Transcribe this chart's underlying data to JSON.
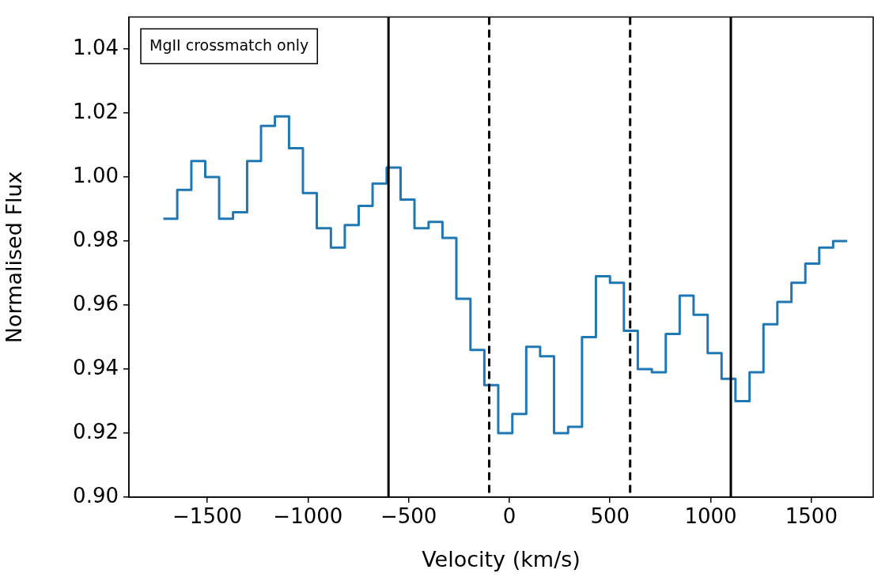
{
  "chart_data": {
    "type": "step",
    "xlabel": "Velocity (km/s)",
    "ylabel": "Normalised Flux",
    "annotations": [
      "MgII crossmatch only"
    ],
    "x": [
      -1718,
      -1649,
      -1579,
      -1510,
      -1441,
      -1372,
      -1302,
      -1233,
      -1164,
      -1094,
      -1025,
      -956,
      -886,
      -817,
      -748,
      -679,
      -609,
      -540,
      -471,
      -401,
      -332,
      -263,
      -193,
      -124,
      -55,
      15,
      84,
      153,
      222,
      292,
      361,
      430,
      500,
      569,
      638,
      708,
      777,
      846,
      915,
      985,
      1054,
      1123,
      1193,
      1262,
      1331,
      1401,
      1470,
      1539,
      1608,
      1678
    ],
    "series": [
      {
        "color": "#1f77b4",
        "values": [
          0.987,
          0.996,
          1.005,
          1.0,
          0.987,
          0.989,
          1.005,
          1.016,
          1.019,
          1.009,
          0.995,
          0.984,
          0.978,
          0.985,
          0.991,
          0.998,
          1.003,
          0.993,
          0.984,
          0.986,
          0.981,
          0.962,
          0.946,
          0.935,
          0.92,
          0.926,
          0.947,
          0.944,
          0.92,
          0.922,
          0.95,
          0.969,
          0.967,
          0.952,
          0.94,
          0.939,
          0.951,
          0.963,
          0.957,
          0.945,
          0.937,
          0.93,
          0.939,
          0.954,
          0.961,
          0.967,
          0.973,
          0.978,
          0.98,
          0.98
        ]
      }
    ],
    "xlim": [
      -1889,
      1807
    ],
    "ylim": [
      0.9,
      1.05
    ],
    "xticks": [
      {
        "value": -1500,
        "label": "−1500"
      },
      {
        "value": -1000,
        "label": "−1000"
      },
      {
        "value": -500,
        "label": "−500"
      },
      0,
      500,
      1000,
      1500
    ],
    "yticks": [
      {
        "value": 0.9,
        "label": "0.90"
      },
      0.92,
      0.94,
      0.96,
      0.98,
      {
        "value": 1,
        "label": "1.00"
      },
      1.02,
      1.04
    ],
    "ref_lines": [
      {
        "axis": "x",
        "value": -600,
        "color": "#000000",
        "line_style": "solid"
      },
      {
        "axis": "x",
        "value": -100,
        "color": "#000000",
        "line_style": "dashed"
      },
      {
        "axis": "x",
        "value": 600,
        "color": "#000000",
        "line_style": "dashed"
      },
      {
        "axis": "x",
        "value": 1100,
        "color": "#000000",
        "line_style": "solid"
      }
    ],
    "grid": false,
    "legend": false,
    "marker": "none",
    "line_style": "solid"
  }
}
